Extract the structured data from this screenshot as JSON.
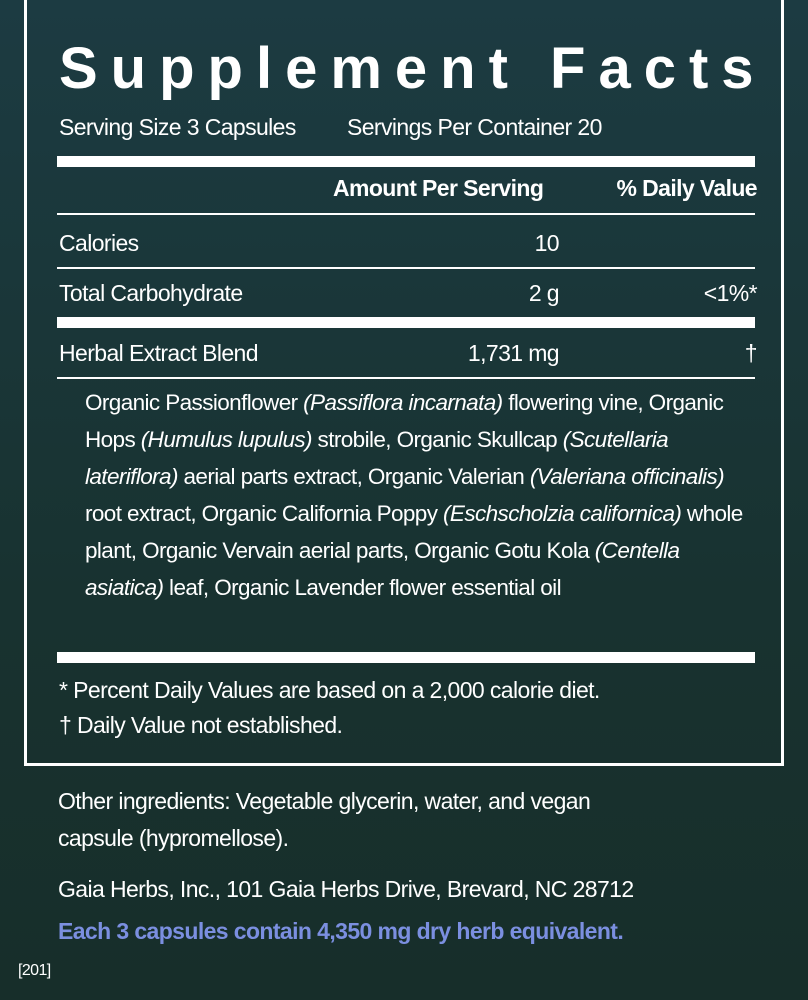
{
  "title": "Supplement Facts",
  "serving_size": "Serving Size 3 Capsules",
  "servings_per_container": "Servings Per Container 20",
  "headers": {
    "amount": "Amount Per Serving",
    "dv": "% Daily Value"
  },
  "rows": [
    {
      "name": "Calories",
      "amount": "10",
      "dv": ""
    },
    {
      "name": "Total Carbohydrate",
      "amount": "2 g",
      "dv": "<1%*"
    },
    {
      "name": "Herbal Extract Blend",
      "amount": "1,731 mg",
      "dv": "†"
    }
  ],
  "ingredients": [
    {
      "t": "Organic Passionflower ",
      "i": false
    },
    {
      "t": "(Passiflora incarnata)",
      "i": true
    },
    {
      "t": " flowering vine, Organic Hops ",
      "i": false
    },
    {
      "t": "(Humulus lupulus)",
      "i": true
    },
    {
      "t": " strobile, Organic Skullcap ",
      "i": false
    },
    {
      "t": "(Scutellaria lateriflora)",
      "i": true
    },
    {
      "t": " aerial parts extract, Organic Valerian ",
      "i": false
    },
    {
      "t": "(Valeriana officinalis)",
      "i": true
    },
    {
      "t": " root extract, Organic California Poppy ",
      "i": false
    },
    {
      "t": "(Eschscholzia californica)",
      "i": true
    },
    {
      "t": " whole plant, Organic Vervain aerial parts, Organic Gotu Kola ",
      "i": false
    },
    {
      "t": "(Centella asiatica)",
      "i": true
    },
    {
      "t": " leaf, Organic Lavender flower essential oil",
      "i": false
    }
  ],
  "footnotes": [
    "* Percent Daily Values are based on a 2,000 calorie diet.",
    "† Daily Value not established."
  ],
  "other_ingredients": [
    "Other ingredients: Vegetable glycerin, water, and vegan",
    "capsule (hypromellose)."
  ],
  "address": "Gaia Herbs, Inc., 101 Gaia Herbs Drive, Brevard, NC 28712",
  "equivalent": "Each 3 capsules contain 4,350 mg dry herb equivalent.",
  "code": "[201]",
  "colors": {
    "accent": "#7b8fe0",
    "background": "#183230"
  }
}
